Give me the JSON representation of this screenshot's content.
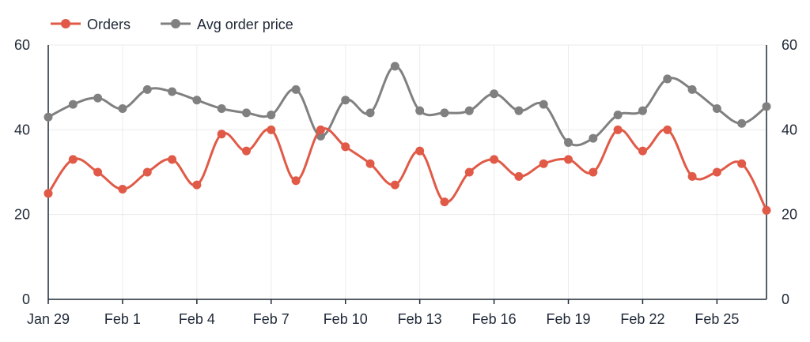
{
  "chart_data": {
    "type": "line",
    "title": "",
    "xlabel": "",
    "ylabel": "",
    "ylim": [
      0,
      60
    ],
    "y2lim": [
      0,
      60
    ],
    "yticks": [
      "0",
      "20",
      "40",
      "60"
    ],
    "y2ticks": [
      "0",
      "20",
      "40",
      "60"
    ],
    "x": [
      "Jan 29",
      "Jan 30",
      "Jan 31",
      "Feb 1",
      "Feb 2",
      "Feb 3",
      "Feb 4",
      "Feb 5",
      "Feb 6",
      "Feb 7",
      "Feb 8",
      "Feb 9",
      "Feb 10",
      "Feb 11",
      "Feb 12",
      "Feb 13",
      "Feb 14",
      "Feb 15",
      "Feb 16",
      "Feb 17",
      "Feb 18",
      "Feb 19",
      "Feb 20",
      "Feb 21",
      "Feb 22",
      "Feb 23",
      "Feb 24",
      "Feb 25",
      "Feb 26",
      "Feb 27"
    ],
    "xtick_labels": [
      "Jan 29",
      "Feb 1",
      "Feb 4",
      "Feb 7",
      "Feb 10",
      "Feb 13",
      "Feb 16",
      "Feb 19",
      "Feb 22",
      "Feb 25"
    ],
    "grid": true,
    "legend_position": "top-left",
    "series": [
      {
        "name": "Orders",
        "color": "#e05a47",
        "axis": "left",
        "values": [
          25,
          33,
          30,
          26,
          30,
          33,
          27,
          39,
          35,
          40,
          28,
          40,
          36,
          32,
          27,
          35,
          23,
          30,
          33,
          29,
          32,
          33,
          30,
          40,
          35,
          40,
          29,
          30,
          32,
          21
        ]
      },
      {
        "name": "Avg order price",
        "color": "#808080",
        "axis": "right",
        "values": [
          43,
          46,
          47.5,
          45,
          49.5,
          49,
          47,
          45,
          44,
          43.5,
          49.5,
          38.5,
          47,
          44,
          55,
          44.5,
          44,
          44.5,
          48.5,
          44.5,
          46,
          37,
          38,
          43.5,
          44.5,
          52,
          49.5,
          45,
          41.5,
          45.5
        ]
      }
    ]
  }
}
